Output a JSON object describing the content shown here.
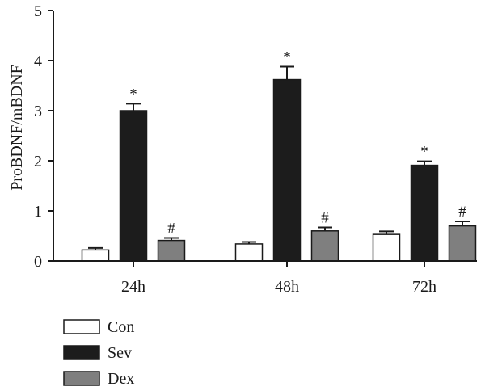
{
  "chart_data": {
    "type": "bar",
    "title": "",
    "xlabel": "",
    "ylabel": "ProBDNF/mBDNF",
    "ylim": [
      0,
      5
    ],
    "yticks": [
      0,
      1,
      2,
      3,
      4,
      5
    ],
    "categories": [
      "24h",
      "48h",
      "72h"
    ],
    "series": [
      {
        "name": "Con",
        "color": "#ffffff",
        "values": [
          0.22,
          0.34,
          0.53
        ],
        "errors": [
          0.04,
          0.04,
          0.06
        ],
        "marks": [
          "",
          "",
          ""
        ]
      },
      {
        "name": "Sev",
        "color": "#1c1c1c",
        "values": [
          3.0,
          3.62,
          1.91
        ],
        "errors": [
          0.14,
          0.26,
          0.08
        ],
        "marks": [
          "*",
          "*",
          "*"
        ]
      },
      {
        "name": "Dex",
        "color": "#7f7f7f",
        "values": [
          0.41,
          0.6,
          0.7
        ],
        "errors": [
          0.05,
          0.07,
          0.09
        ],
        "marks": [
          "#",
          "#",
          "#"
        ]
      }
    ],
    "legend_position": "bottom-left",
    "grid": false
  }
}
